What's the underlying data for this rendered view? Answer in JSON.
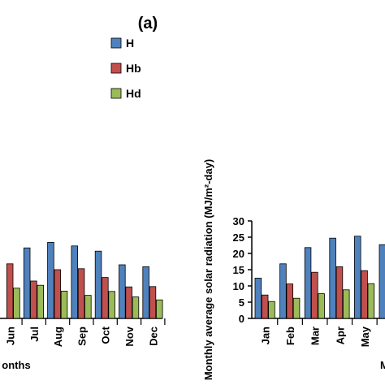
{
  "chart_data": [
    {
      "type": "bar",
      "panel_label": "(a)",
      "xlabel_fragment": "onths",
      "categories": [
        "Jun",
        "Jul",
        "Aug",
        "Sep",
        "Oct",
        "Nov",
        "Dec"
      ],
      "series": [
        {
          "name": "H",
          "color": "#4f81bd",
          "values": [
            null,
            21.7,
            23.4,
            22.3,
            20.7,
            16.5,
            15.9
          ]
        },
        {
          "name": "Hb",
          "color": "#c0504d",
          "values": [
            16.8,
            11.5,
            15.0,
            15.3,
            12.6,
            9.7,
            9.8
          ]
        },
        {
          "name": "Hd",
          "color": "#9bbb59",
          "values": [
            9.3,
            10.2,
            8.4,
            7.1,
            8.3,
            6.6,
            5.7
          ]
        }
      ],
      "legend": [
        "H",
        "Hb",
        "Hd"
      ],
      "legend_position": "top-right",
      "ylim": [
        0,
        30
      ]
    },
    {
      "type": "bar",
      "ylabel": "Monthly average solar radiation (MJ/m²-day)",
      "xlabel_fragment": "M",
      "categories": [
        "Jan",
        "Feb",
        "Mar",
        "Apr",
        "May",
        ""
      ],
      "series": [
        {
          "name": "H",
          "color": "#4f81bd",
          "values": [
            12.4,
            16.8,
            21.8,
            24.7,
            25.3,
            22.7
          ]
        },
        {
          "name": "Hb",
          "color": "#c0504d",
          "values": [
            7.2,
            10.6,
            14.2,
            15.9,
            14.7,
            null
          ]
        },
        {
          "name": "Hd",
          "color": "#9bbb59",
          "values": [
            5.2,
            6.2,
            7.6,
            8.8,
            10.7,
            null
          ]
        }
      ],
      "yticks": [
        0,
        5,
        10,
        15,
        20,
        25,
        30
      ],
      "ylim": [
        0,
        30
      ]
    }
  ]
}
